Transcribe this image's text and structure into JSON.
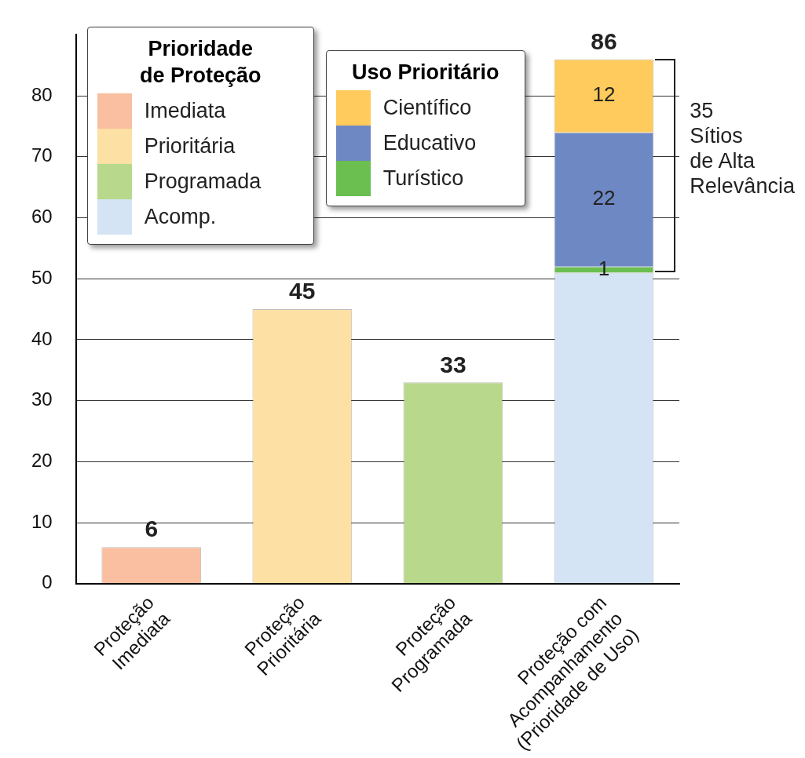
{
  "chart_data": {
    "type": "bar",
    "stacked": true,
    "legend_title": "Prioridade\nde Proteção",
    "legend": "top left",
    "categories": [
      "Proteção\nImediata",
      "Proteção\nPrioritária",
      "Proteção\nProgramada",
      "Proteção com\nAcompanhamento\n(Prioridade de Uso)"
    ],
    "series": [
      {
        "name": "Imediata",
        "color": "#f9bfa0",
        "values": [
          6,
          null,
          null,
          null
        ]
      },
      {
        "name": "Prioritária",
        "color": "#fde0a4",
        "values": [
          null,
          45,
          null,
          null
        ]
      },
      {
        "name": "Programada",
        "color": "#b8d98c",
        "values": [
          null,
          null,
          33,
          null
        ]
      },
      {
        "name": "Acomp.",
        "color": "#d4e4f4",
        "values": [
          null,
          null,
          null,
          51
        ]
      },
      {
        "name": "Turístico",
        "color": "#6abf50",
        "values": [
          null,
          null,
          null,
          1
        ],
        "value_labels": [
          null,
          null,
          null,
          "1"
        ]
      },
      {
        "name": "Educativo",
        "color": "#6e88c4",
        "values": [
          null,
          null,
          null,
          22
        ],
        "value_labels": [
          null,
          null,
          null,
          "22"
        ]
      },
      {
        "name": "Científico",
        "color": "#fecb5c",
        "values": [
          null,
          null,
          null,
          12
        ],
        "value_labels": [
          null,
          null,
          null,
          "12"
        ]
      }
    ],
    "totals": [
      "6",
      "45",
      "33",
      "86"
    ],
    "annotations": [
      "Uso Prioritário",
      "35\nSítios\nde Alta\nRelevância"
    ],
    "ylim": [
      0,
      90
    ],
    "yticks": [
      0,
      10,
      20,
      30,
      40,
      50,
      60,
      70,
      80
    ],
    "grid": "y"
  }
}
